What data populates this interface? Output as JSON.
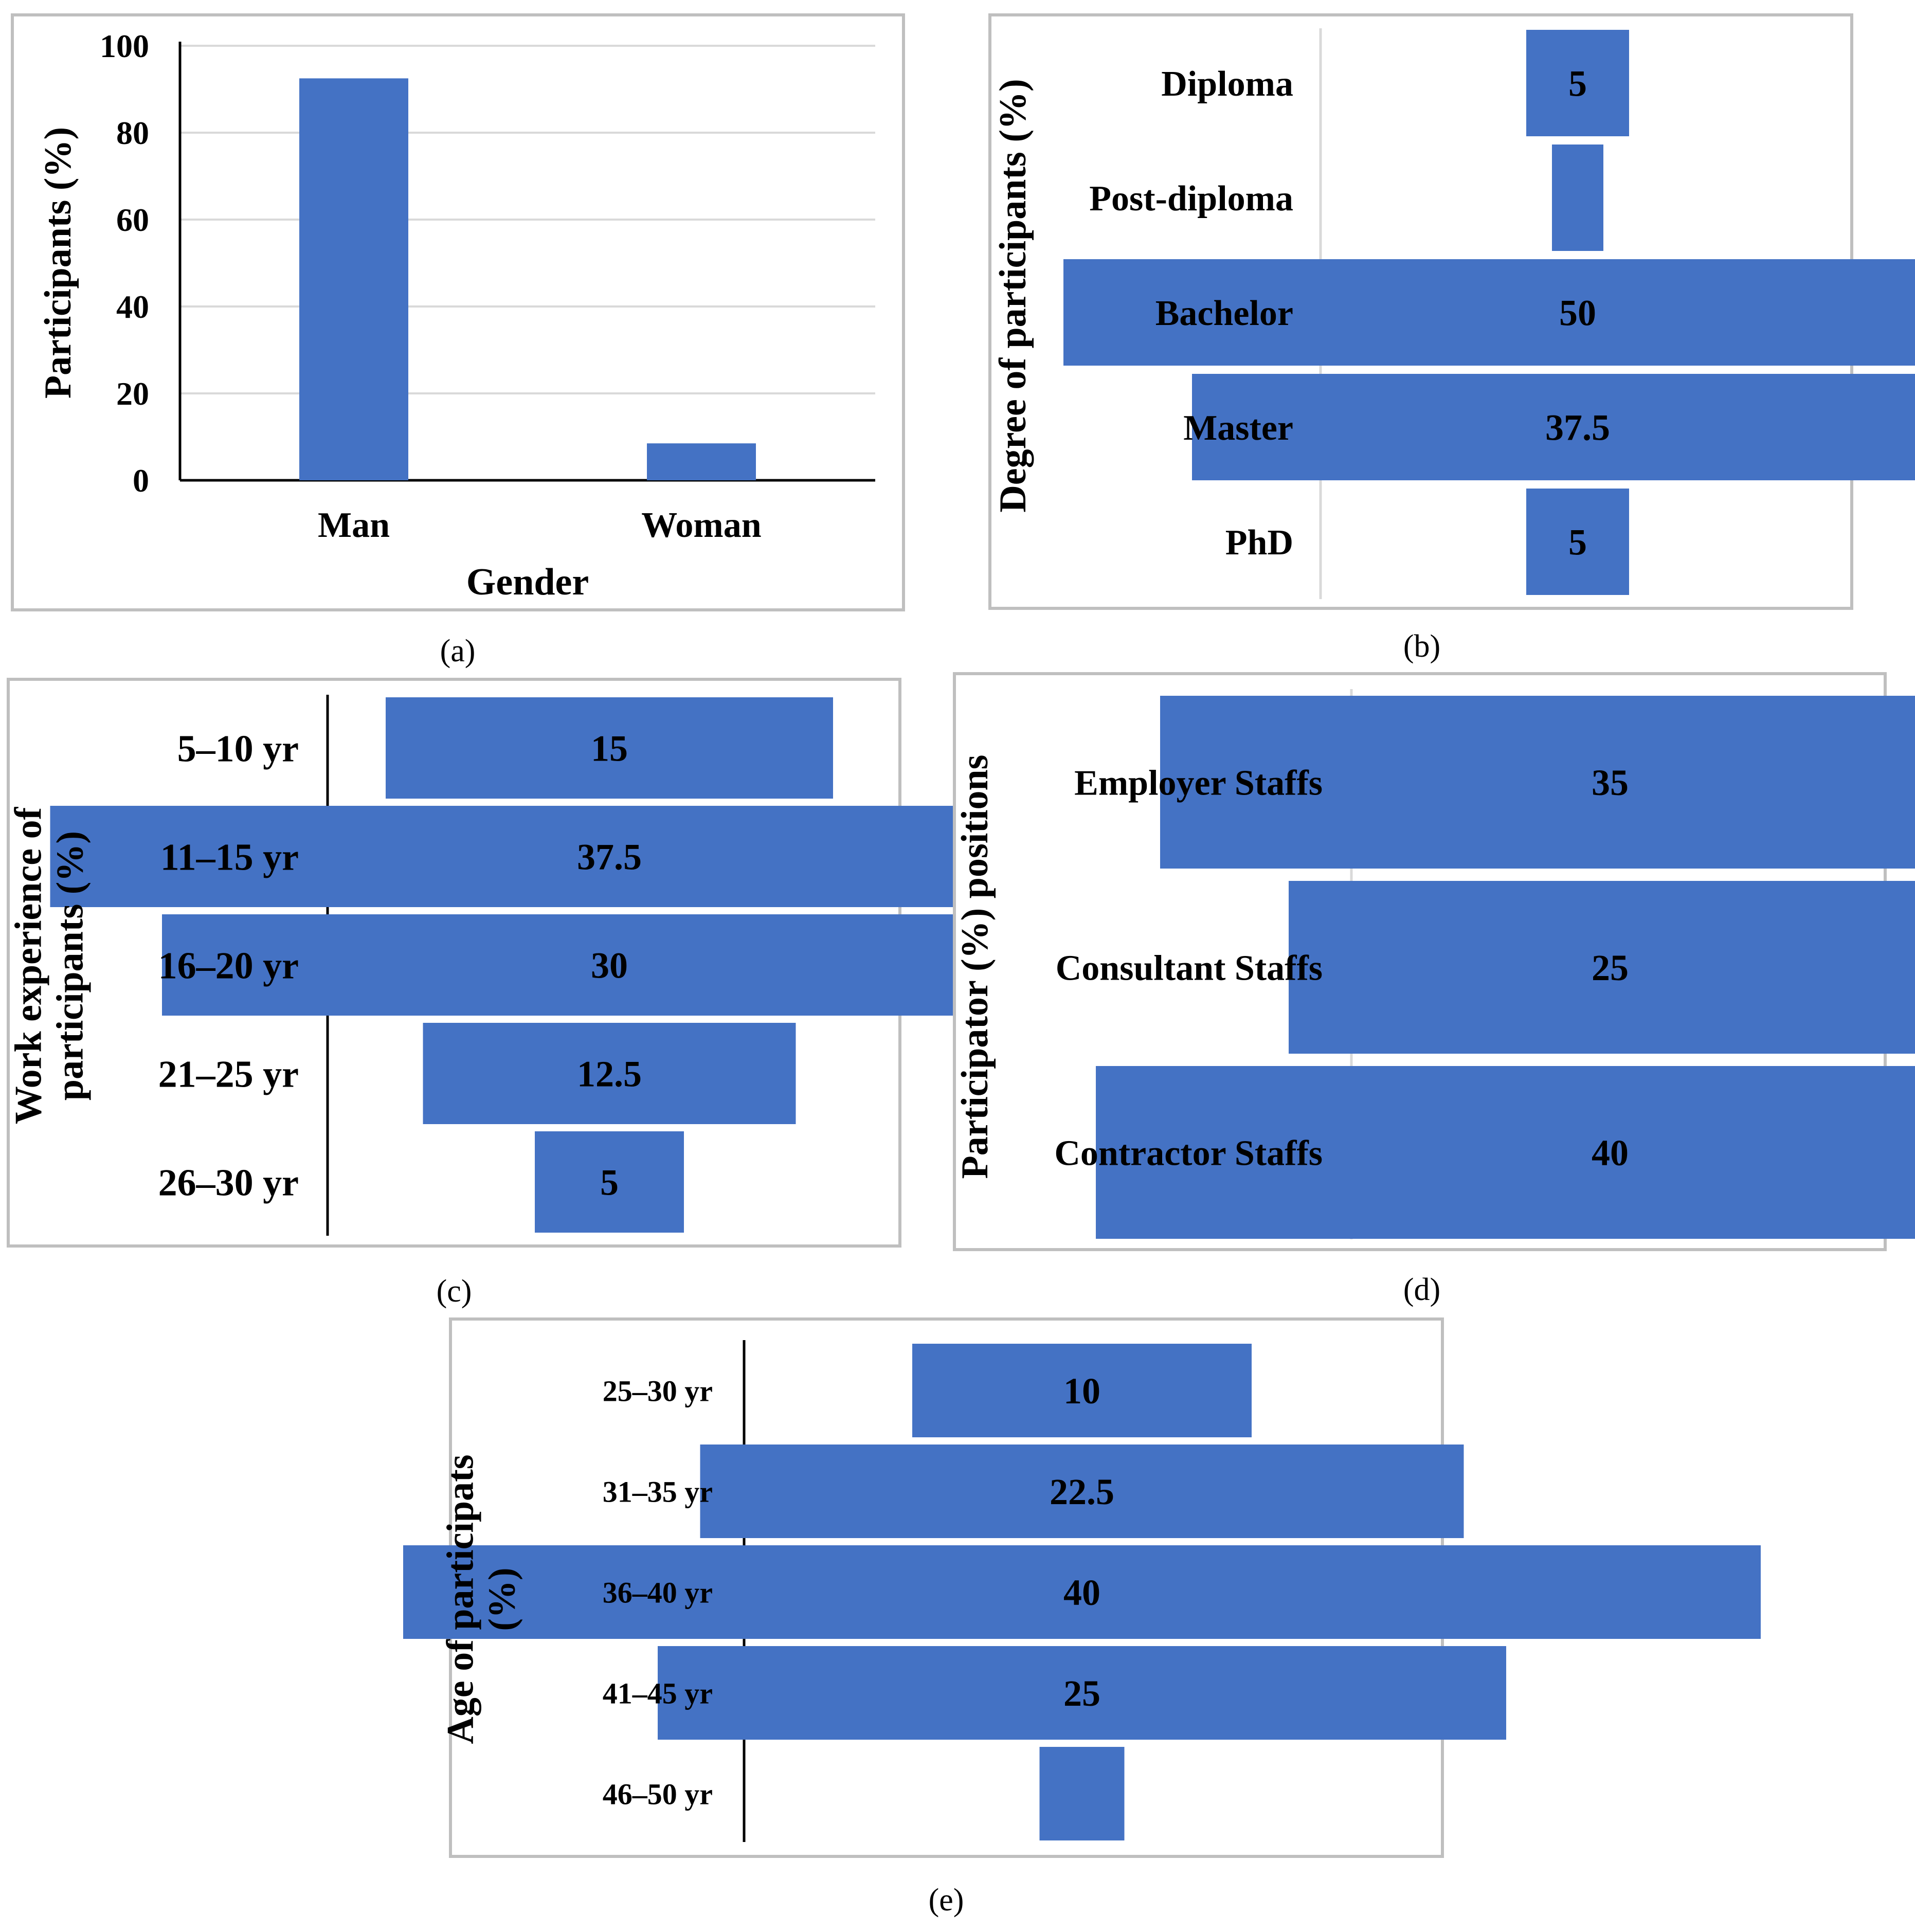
{
  "chart_data": [
    {
      "id": "a",
      "type": "bar",
      "caption": "(a)",
      "categories": [
        "Man",
        "Woman"
      ],
      "values": [
        92.5,
        8.5
      ],
      "xlabel": "Gender",
      "ylabel": "Participants (%)",
      "ylim": [
        0,
        100
      ],
      "yticks": [
        "0",
        "20",
        "40",
        "60",
        "80",
        "100"
      ],
      "grid": true,
      "color": "#4472c4"
    },
    {
      "id": "b",
      "type": "bar",
      "orientation": "funnel",
      "caption": "(b)",
      "categories": [
        "Diploma",
        "Post-diploma",
        "Bachelor",
        "Master",
        "PhD"
      ],
      "values": [
        5,
        2.5,
        50,
        37.5,
        5
      ],
      "labels": [
        "5",
        "",
        "50",
        "37.5",
        "5"
      ],
      "ylabel": "Degree of participants (%)",
      "color": "#4472c4"
    },
    {
      "id": "c",
      "type": "bar",
      "orientation": "funnel",
      "caption": "(c)",
      "categories": [
        "5–10 yr",
        "11–15 yr",
        "16–20 yr",
        "21–25 yr",
        "26–30 yr"
      ],
      "values": [
        15,
        37.5,
        30,
        12.5,
        5
      ],
      "labels": [
        "15",
        "37.5",
        "30",
        "12.5",
        "5"
      ],
      "ylabel": [
        "Work experience of",
        "participants (%)"
      ],
      "color": "#4472c4"
    },
    {
      "id": "d",
      "type": "bar",
      "orientation": "funnel",
      "caption": "(d)",
      "categories": [
        "Employer Staffs",
        "Consultant Staffs",
        "Contractor Staffs"
      ],
      "values": [
        35,
        25,
        40
      ],
      "labels": [
        "35",
        "25",
        "40"
      ],
      "ylabel": "Participator (%) positions",
      "color": "#4472c4"
    },
    {
      "id": "e",
      "type": "bar",
      "orientation": "funnel",
      "caption": "(e)",
      "categories": [
        "25–30 yr",
        "31–35 yr",
        "36–40 yr",
        "41–45 yr",
        "46–50 yr"
      ],
      "values": [
        10,
        22.5,
        40,
        25,
        2.5
      ],
      "labels": [
        "10",
        "22.5",
        "40",
        "25",
        ""
      ],
      "ylabel": [
        "Age of participats",
        "(%)"
      ],
      "color": "#4472c4"
    }
  ]
}
